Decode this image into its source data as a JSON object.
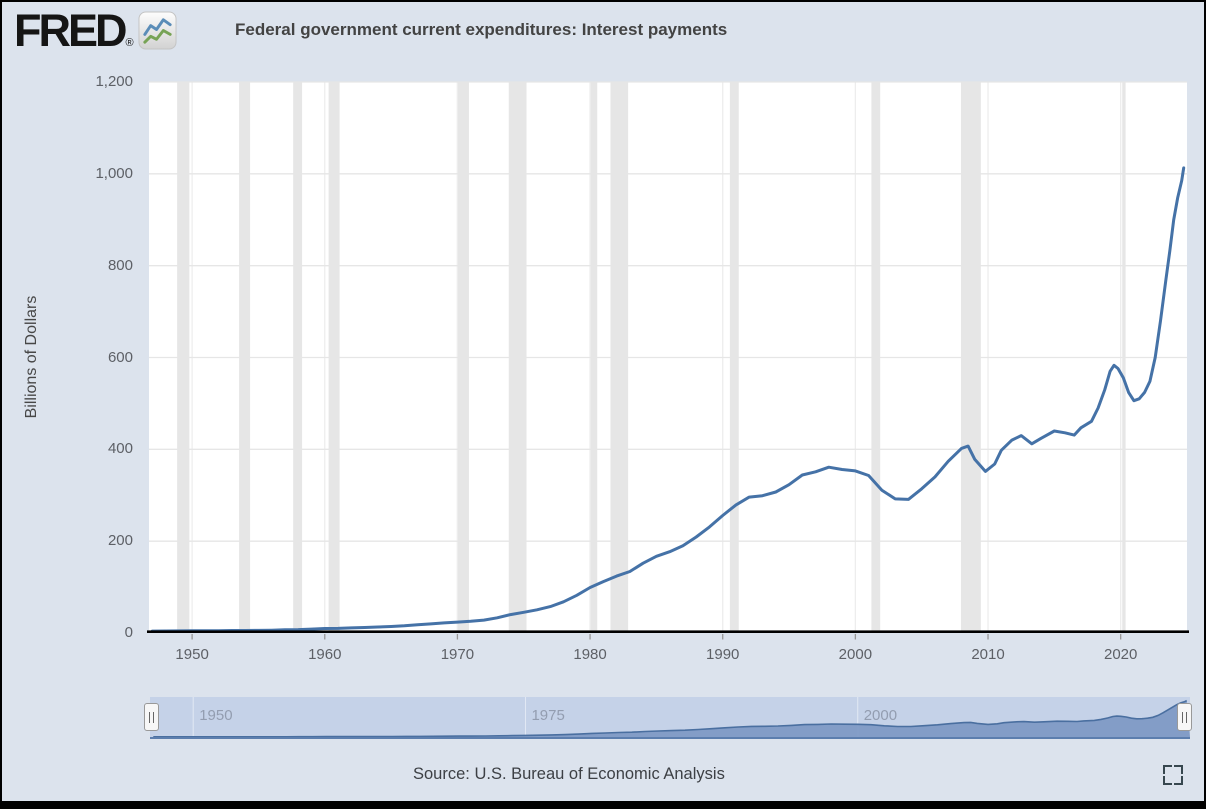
{
  "page": {
    "background": "#dce3ed",
    "border_color": "#000000"
  },
  "header": {
    "logo_text": "FRED",
    "logo_registered": "®",
    "logo_icon": "fred-sparkline-icon",
    "legend": {
      "marker_color": "#4572a7",
      "label": "Federal government current expenditures: Interest payments"
    }
  },
  "chart_data": {
    "type": "line",
    "title": "Federal government current expenditures: Interest payments",
    "xlabel": "",
    "ylabel": "Billions of Dollars",
    "grid": "on",
    "line_color": "#4572a7",
    "grid_color_h": "#e6e6e6",
    "grid_color_v": "#ededed",
    "recession_band_color": "#e6e6e6",
    "axis_color": "#000000",
    "tick_color": "#989898",
    "x_domain": [
      1946.75,
      2025.0
    ],
    "ylim": [
      0,
      1200
    ],
    "y_ticks": [
      {
        "value": 0,
        "label": "0"
      },
      {
        "value": 200,
        "label": "200"
      },
      {
        "value": 400,
        "label": "400"
      },
      {
        "value": 600,
        "label": "600"
      },
      {
        "value": 800,
        "label": "800"
      },
      {
        "value": 1000,
        "label": "1,000"
      },
      {
        "value": 1200,
        "label": "1,200"
      }
    ],
    "x_ticks": [
      {
        "value": 1950,
        "label": "1950"
      },
      {
        "value": 1960,
        "label": "1960"
      },
      {
        "value": 1970,
        "label": "1970"
      },
      {
        "value": 1980,
        "label": "1980"
      },
      {
        "value": 1990,
        "label": "1990"
      },
      {
        "value": 2000,
        "label": "2000"
      },
      {
        "value": 2010,
        "label": "2010"
      },
      {
        "value": 2020,
        "label": "2020"
      }
    ],
    "recessions": [
      [
        1948.87,
        1949.79
      ],
      [
        1953.54,
        1954.37
      ],
      [
        1957.62,
        1958.29
      ],
      [
        1960.29,
        1961.12
      ],
      [
        1969.96,
        1970.87
      ],
      [
        1973.87,
        1975.21
      ],
      [
        1980.04,
        1980.54
      ],
      [
        1981.54,
        1982.87
      ],
      [
        1990.54,
        1991.21
      ],
      [
        2001.21,
        2001.87
      ],
      [
        2007.96,
        2009.46
      ],
      [
        2020.12,
        2020.37
      ]
    ],
    "series": [
      {
        "name": "Federal government current expenditures: Interest payments",
        "points": [
          [
            1947,
            4.2
          ],
          [
            1948,
            4.4
          ],
          [
            1949,
            4.6
          ],
          [
            1950,
            4.8
          ],
          [
            1951,
            4.9
          ],
          [
            1952,
            5.1
          ],
          [
            1953,
            5.4
          ],
          [
            1954,
            5.5
          ],
          [
            1955,
            5.6
          ],
          [
            1956,
            6.1
          ],
          [
            1957,
            6.9
          ],
          [
            1958,
            7.4
          ],
          [
            1959,
            8.6
          ],
          [
            1960,
            9.8
          ],
          [
            1961,
            10.1
          ],
          [
            1962,
            11.0
          ],
          [
            1963,
            12.0
          ],
          [
            1964,
            13.0
          ],
          [
            1965,
            14.1
          ],
          [
            1966,
            15.7
          ],
          [
            1967,
            17.8
          ],
          [
            1968,
            19.8
          ],
          [
            1969,
            22.0
          ],
          [
            1970,
            23.8
          ],
          [
            1971,
            25.4
          ],
          [
            1972,
            28.0
          ],
          [
            1973,
            33.0
          ],
          [
            1974,
            40.0
          ],
          [
            1975,
            45.0
          ],
          [
            1976,
            50.5
          ],
          [
            1977,
            57.5
          ],
          [
            1978,
            68.0
          ],
          [
            1979,
            82.0
          ],
          [
            1980,
            99.0
          ],
          [
            1981,
            112.0
          ],
          [
            1982,
            124.0
          ],
          [
            1983,
            134.0
          ],
          [
            1984,
            152.0
          ],
          [
            1985,
            167.0
          ],
          [
            1986,
            177.0
          ],
          [
            1987,
            190.0
          ],
          [
            1988,
            209.0
          ],
          [
            1989,
            231.0
          ],
          [
            1990,
            256.0
          ],
          [
            1991,
            279.0
          ],
          [
            1992,
            296.0
          ],
          [
            1993,
            299.0
          ],
          [
            1994,
            307.0
          ],
          [
            1995,
            323.0
          ],
          [
            1996,
            344.0
          ],
          [
            1997,
            351.0
          ],
          [
            1998,
            361.0
          ],
          [
            1999,
            356.0
          ],
          [
            2000,
            353.0
          ],
          [
            2001,
            343.0
          ],
          [
            2002,
            311.0
          ],
          [
            2003,
            292.0
          ],
          [
            2004,
            291.0
          ],
          [
            2005,
            314.0
          ],
          [
            2006,
            340.0
          ],
          [
            2007,
            374.0
          ],
          [
            2008,
            402.0
          ],
          [
            2008.5,
            407.0
          ],
          [
            2009,
            378.0
          ],
          [
            2009.8,
            352.0
          ],
          [
            2010.5,
            368.0
          ],
          [
            2011,
            398.0
          ],
          [
            2011.8,
            420.0
          ],
          [
            2012.5,
            430.0
          ],
          [
            2013.3,
            412.0
          ],
          [
            2014,
            424.0
          ],
          [
            2015,
            440.0
          ],
          [
            2015.8,
            436.0
          ],
          [
            2016.5,
            431.0
          ],
          [
            2017,
            447.0
          ],
          [
            2017.8,
            461.0
          ],
          [
            2018.3,
            490.0
          ],
          [
            2018.8,
            530.0
          ],
          [
            2019.2,
            570.0
          ],
          [
            2019.5,
            583.0
          ],
          [
            2019.8,
            576.0
          ],
          [
            2020.2,
            556.0
          ],
          [
            2020.6,
            524.0
          ],
          [
            2021,
            506.0
          ],
          [
            2021.4,
            510.0
          ],
          [
            2021.8,
            524.0
          ],
          [
            2022.2,
            548.0
          ],
          [
            2022.6,
            600.0
          ],
          [
            2023,
            680.0
          ],
          [
            2023.4,
            768.0
          ],
          [
            2023.7,
            832.0
          ],
          [
            2024,
            900.0
          ],
          [
            2024.3,
            948.0
          ],
          [
            2024.6,
            985.0
          ],
          [
            2024.75,
            1013.0
          ]
        ]
      }
    ]
  },
  "navigator": {
    "selection_color": "#c5d2e8",
    "area_fill": "#7b97c3",
    "area_line": "#4a6fa0",
    "grid_color": "rgba(255,255,255,0.5)",
    "labels": [
      {
        "value": 1950,
        "label": "1950"
      },
      {
        "value": 1975,
        "label": "1975"
      },
      {
        "value": 2000,
        "label": "2000"
      }
    ],
    "handle_glyph": "||"
  },
  "footer": {
    "source_text": "Source: U.S. Bureau of Economic Analysis",
    "fullscreen_icon": "expand-icon"
  }
}
